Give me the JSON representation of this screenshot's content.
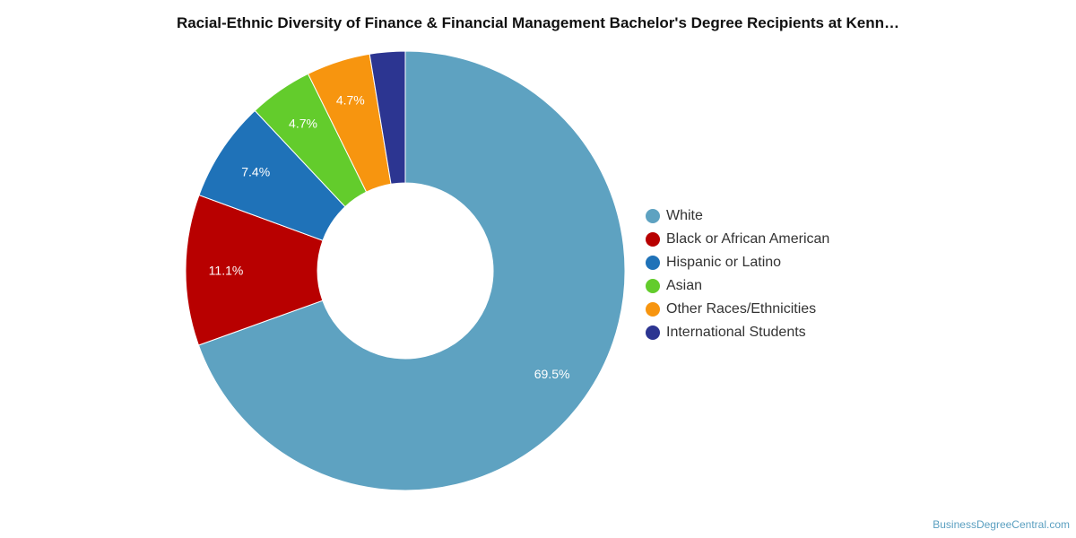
{
  "chart_data": {
    "type": "pie",
    "variant": "donut",
    "title": "Racial-Ethnic Diversity of Finance & Financial Management Bachelor's Degree Recipients at Kenn…",
    "categories": [
      "White",
      "Black or African American",
      "Hispanic or Latino",
      "Asian",
      "Other Races/Ethnicities",
      "International Students"
    ],
    "values": [
      69.5,
      11.1,
      7.4,
      4.7,
      4.7,
      2.6
    ],
    "data_labels": [
      "69.5%",
      "11.1%",
      "7.4%",
      "4.7%",
      "4.7%",
      ""
    ],
    "colors": [
      "#5ea2c1",
      "#b80000",
      "#1f72b8",
      "#63cc2c",
      "#f7950f",
      "#2c3591"
    ],
    "legend_placement": "right"
  },
  "credit": {
    "text": "BusinessDegreeCentral.com"
  }
}
